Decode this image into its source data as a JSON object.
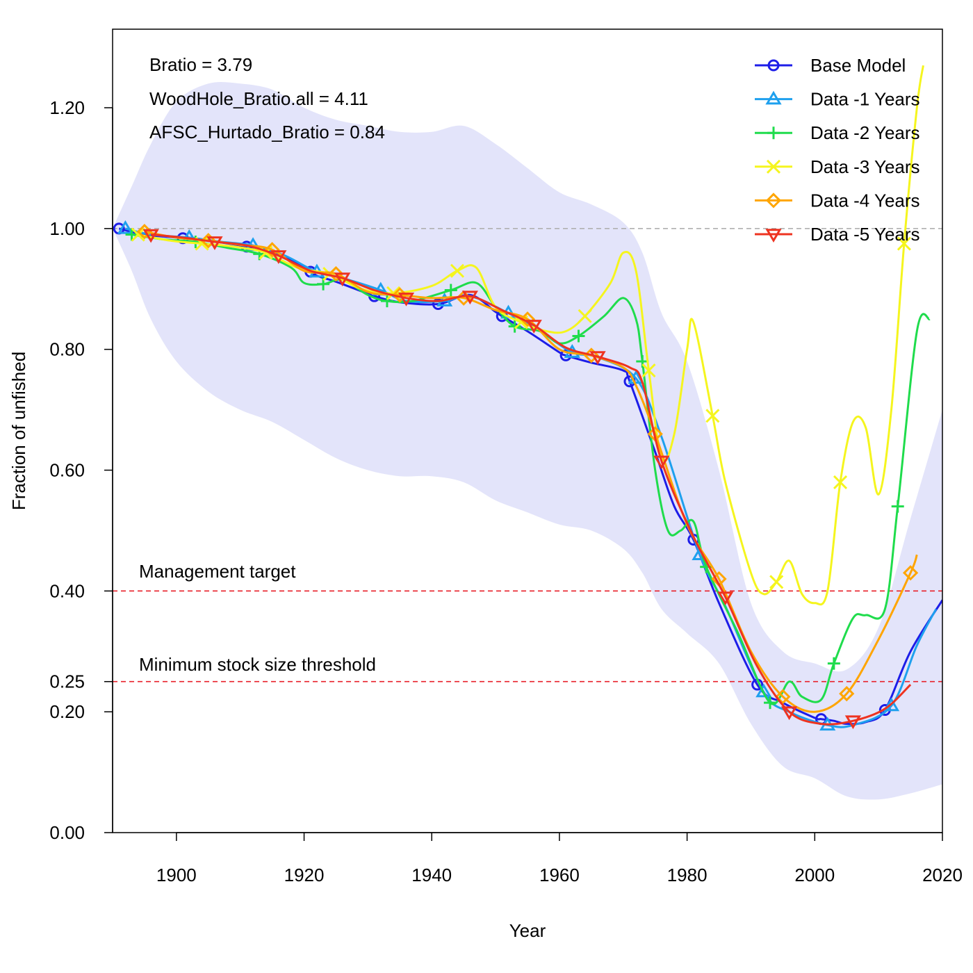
{
  "chart_data": {
    "type": "line",
    "xlabel": "Year",
    "ylabel": "Fraction of unfished",
    "xlim": [
      1890,
      2020
    ],
    "ylim": [
      0,
      1.33
    ],
    "x_ticks": [
      1900,
      1920,
      1940,
      1960,
      1980,
      2000,
      2020
    ],
    "y_ticks": [
      {
        "value": 0.0,
        "label": "0.00"
      },
      {
        "value": 0.2,
        "label": "0.20"
      },
      {
        "value": 0.25,
        "label": "0.25"
      },
      {
        "value": 0.4,
        "label": "0.40"
      },
      {
        "value": 0.6,
        "label": "0.60"
      },
      {
        "value": 0.8,
        "label": "0.80"
      },
      {
        "value": 1.0,
        "label": "1.00"
      },
      {
        "value": 1.2,
        "label": "1.20"
      }
    ],
    "annotations": [
      "Bratio = 3.79",
      "WoodHole_Bratio.all = 4.11",
      "AFSC_Hurtado_Bratio = 0.84"
    ],
    "reference_lines": [
      {
        "value": 1.0,
        "color": "#b0b0b0",
        "label": ""
      },
      {
        "value": 0.4,
        "color": "#e8202a",
        "label": "Management target"
      },
      {
        "value": 0.25,
        "color": "#e8202a",
        "label": "Minimum stock size threshold"
      }
    ],
    "legend_position": "top-right",
    "uncertainty_band": {
      "color": "#e3e4fa",
      "series": "Base Model",
      "x": [
        1890,
        1893,
        1896,
        1900,
        1905,
        1910,
        1915,
        1920,
        1925,
        1930,
        1935,
        1940,
        1945,
        1950,
        1955,
        1960,
        1965,
        1970,
        1973,
        1976,
        1980,
        1985,
        1990,
        1995,
        2000,
        2005,
        2010,
        2015,
        2020
      ],
      "upper": [
        1.0,
        1.07,
        1.14,
        1.21,
        1.24,
        1.24,
        1.23,
        1.2,
        1.18,
        1.17,
        1.16,
        1.16,
        1.17,
        1.14,
        1.1,
        1.06,
        1.04,
        1.01,
        0.96,
        0.86,
        0.78,
        0.6,
        0.38,
        0.3,
        0.28,
        0.27,
        0.34,
        0.52,
        0.7
      ],
      "lower": [
        1.0,
        0.93,
        0.85,
        0.78,
        0.73,
        0.7,
        0.68,
        0.65,
        0.62,
        0.6,
        0.59,
        0.59,
        0.58,
        0.55,
        0.53,
        0.51,
        0.5,
        0.47,
        0.43,
        0.37,
        0.33,
        0.28,
        0.18,
        0.11,
        0.09,
        0.06,
        0.055,
        0.065,
        0.08
      ]
    },
    "series": [
      {
        "name": "Base Model",
        "color": "#1d1de8",
        "marker": "circle",
        "x": [
          1891,
          1895,
          1900,
          1905,
          1910,
          1915,
          1920,
          1922,
          1925,
          1930,
          1931,
          1935,
          1941,
          1946,
          1950,
          1951,
          1955,
          1960,
          1961,
          1965,
          1970,
          1971,
          1975,
          1978,
          1981,
          1985,
          1991,
          1995,
          2000,
          2001,
          2003,
          2005,
          2008,
          2011,
          2015,
          2020
        ],
        "y": [
          1.0,
          0.99,
          0.985,
          0.98,
          0.972,
          0.962,
          0.935,
          0.922,
          0.912,
          0.892,
          0.888,
          0.878,
          0.875,
          0.89,
          0.862,
          0.855,
          0.83,
          0.795,
          0.79,
          0.778,
          0.765,
          0.747,
          0.63,
          0.54,
          0.485,
          0.38,
          0.245,
          0.215,
          0.19,
          0.188,
          0.185,
          0.18,
          0.183,
          0.203,
          0.3,
          0.385
        ],
        "marker_x": [
          1891,
          1901,
          1911,
          1921,
          1931,
          1941,
          1951,
          1961,
          1971,
          1981,
          1991,
          2001,
          2011
        ]
      },
      {
        "name": "Data -1 Years",
        "color": "#1ea0ee",
        "marker": "triangle",
        "x": [
          1892,
          1896,
          1902,
          1907,
          1912,
          1917,
          1922,
          1926,
          1932,
          1936,
          1942,
          1946,
          1952,
          1957,
          1962,
          1966,
          1972,
          1976,
          1982,
          1986,
          1992,
          1996,
          2002,
          2006,
          2012,
          2016,
          2019
        ],
        "y": [
          1.0,
          0.99,
          0.985,
          0.978,
          0.972,
          0.955,
          0.928,
          0.918,
          0.898,
          0.88,
          0.88,
          0.888,
          0.86,
          0.83,
          0.795,
          0.787,
          0.752,
          0.655,
          0.46,
          0.375,
          0.233,
          0.2,
          0.178,
          0.178,
          0.21,
          0.31,
          0.37
        ],
        "marker_x": [
          1892,
          1902,
          1912,
          1922,
          1932,
          1942,
          1952,
          1962,
          1972,
          1982,
          1992,
          2002,
          2012
        ]
      },
      {
        "name": "Data -2 Years",
        "color": "#1fdc4c",
        "marker": "plus",
        "x": [
          1893,
          1898,
          1903,
          1908,
          1913,
          1918,
          1920,
          1923,
          1926,
          1930,
          1933,
          1937,
          1943,
          1947,
          1950,
          1953,
          1957,
          1960,
          1963,
          1967,
          1970,
          1972,
          1973,
          1975,
          1977,
          1979,
          1981,
          1983,
          1988,
          1993,
          1996,
          1998,
          2001,
          2003,
          2006,
          2008,
          2011,
          2013,
          2016,
          2018
        ],
        "y": [
          0.99,
          0.982,
          0.978,
          0.968,
          0.958,
          0.935,
          0.91,
          0.908,
          0.915,
          0.89,
          0.88,
          0.88,
          0.898,
          0.91,
          0.87,
          0.838,
          0.83,
          0.81,
          0.822,
          0.855,
          0.885,
          0.85,
          0.78,
          0.6,
          0.5,
          0.5,
          0.515,
          0.44,
          0.33,
          0.215,
          0.25,
          0.225,
          0.22,
          0.28,
          0.355,
          0.36,
          0.37,
          0.54,
          0.83,
          0.85
        ],
        "marker_x": [
          1893,
          1903,
          1913,
          1923,
          1933,
          1943,
          1953,
          1963,
          1973,
          1983,
          1993,
          2003,
          2013
        ]
      },
      {
        "name": "Data -3 Years",
        "color": "#f5f51e",
        "marker": "cross",
        "x": [
          1894,
          1899,
          1904,
          1909,
          1914,
          1919,
          1924,
          1929,
          1934,
          1940,
          1944,
          1947,
          1950,
          1954,
          1958,
          1961,
          1964,
          1968,
          1970,
          1972,
          1974,
          1976,
          1978,
          1980,
          1981,
          1984,
          1986,
          1990,
          1992,
          1994,
          1996,
          1998,
          2000,
          2002,
          2004,
          2006,
          2008,
          2010,
          2012,
          2014,
          2016,
          2017
        ],
        "y": [
          0.99,
          0.98,
          0.975,
          0.97,
          0.96,
          0.935,
          0.925,
          0.9,
          0.893,
          0.905,
          0.93,
          0.935,
          0.87,
          0.845,
          0.83,
          0.83,
          0.855,
          0.91,
          0.96,
          0.93,
          0.765,
          0.62,
          0.66,
          0.8,
          0.845,
          0.69,
          0.58,
          0.43,
          0.395,
          0.415,
          0.45,
          0.395,
          0.38,
          0.4,
          0.58,
          0.68,
          0.67,
          0.56,
          0.7,
          0.975,
          1.2,
          1.27
        ],
        "marker_x": [
          1894,
          1904,
          1914,
          1924,
          1934,
          1944,
          1954,
          1964,
          1974,
          1984,
          1994,
          2004,
          2014
        ]
      },
      {
        "name": "Data -4 Years",
        "color": "#ffa500",
        "marker": "diamond",
        "x": [
          1895,
          1900,
          1905,
          1910,
          1915,
          1920,
          1925,
          1930,
          1935,
          1940,
          1945,
          1950,
          1955,
          1960,
          1965,
          1970,
          1972,
          1975,
          1980,
          1985,
          1990,
          1995,
          2000,
          2005,
          2010,
          2015,
          2016
        ],
        "y": [
          0.995,
          0.985,
          0.98,
          0.973,
          0.965,
          0.93,
          0.925,
          0.895,
          0.89,
          0.885,
          0.885,
          0.865,
          0.85,
          0.8,
          0.79,
          0.77,
          0.74,
          0.66,
          0.51,
          0.42,
          0.3,
          0.225,
          0.2,
          0.23,
          0.32,
          0.43,
          0.46
        ],
        "marker_x": [
          1895,
          1905,
          1915,
          1925,
          1935,
          1945,
          1955,
          1965,
          1975,
          1985,
          1995,
          2005,
          2015
        ]
      },
      {
        "name": "Data -5 Years",
        "color": "#ee3320",
        "marker": "triangle-down",
        "x": [
          1896,
          1901,
          1906,
          1911,
          1916,
          1921,
          1926,
          1931,
          1936,
          1941,
          1946,
          1951,
          1956,
          1961,
          1966,
          1971,
          1973,
          1976,
          1981,
          1986,
          1991,
          1996,
          2001,
          2006,
          2011,
          2015
        ],
        "y": [
          0.99,
          0.985,
          0.978,
          0.972,
          0.955,
          0.93,
          0.918,
          0.898,
          0.885,
          0.88,
          0.888,
          0.865,
          0.84,
          0.803,
          0.788,
          0.77,
          0.745,
          0.615,
          0.49,
          0.39,
          0.275,
          0.2,
          0.18,
          0.185,
          0.205,
          0.245
        ],
        "marker_x": [
          1896,
          1906,
          1916,
          1926,
          1936,
          1946,
          1956,
          1966,
          1976,
          1986,
          1996,
          2006
        ]
      }
    ]
  }
}
